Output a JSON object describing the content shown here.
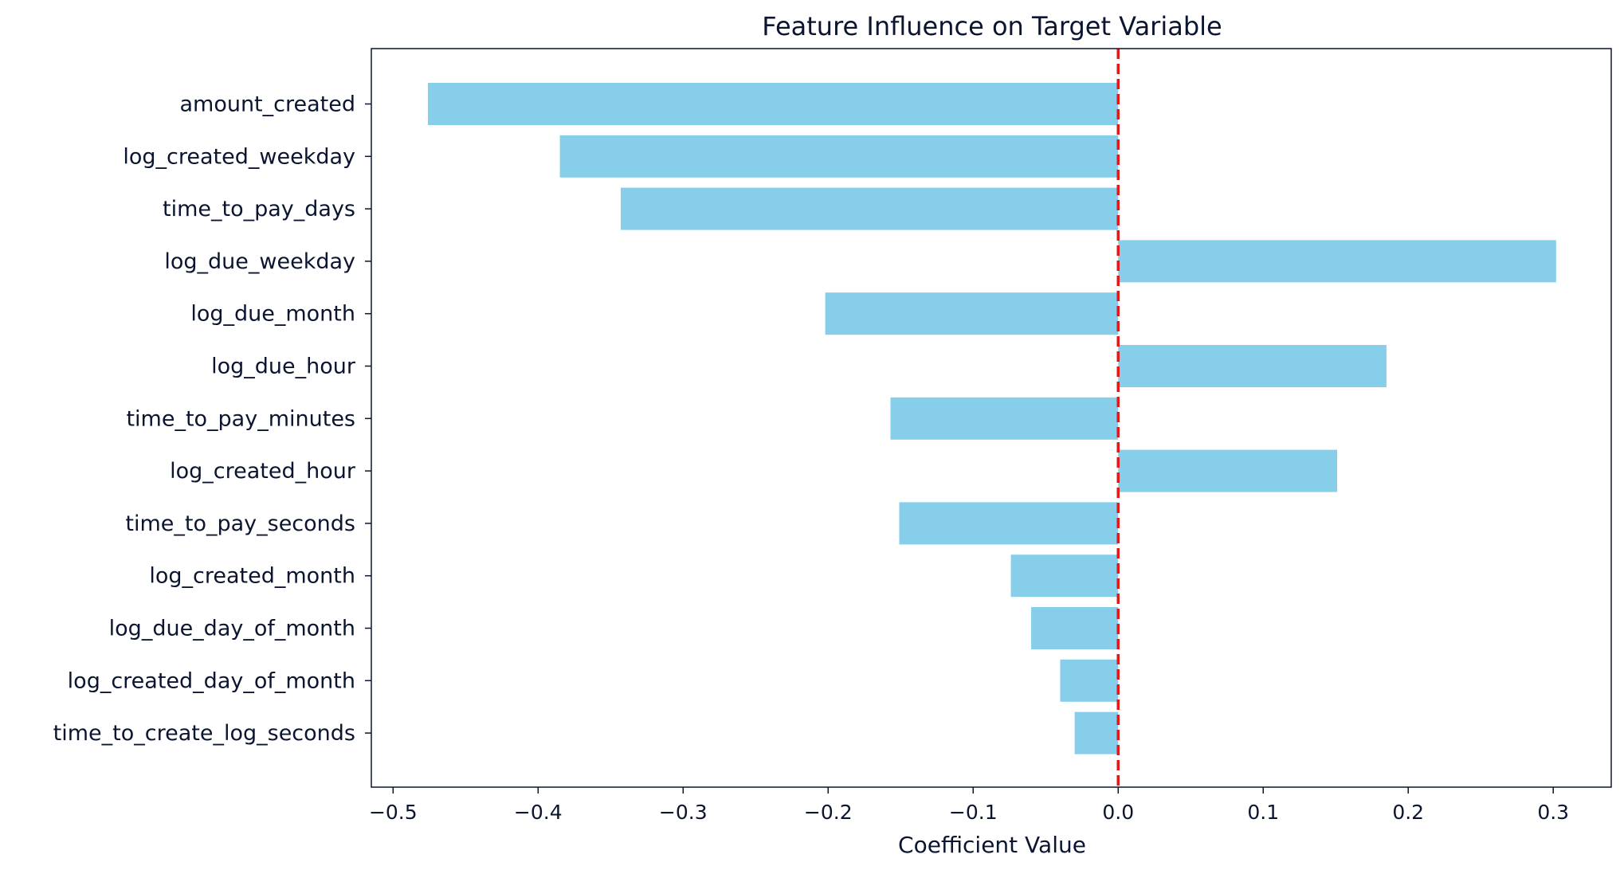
{
  "chart_data": {
    "type": "bar",
    "orientation": "horizontal",
    "title": "Feature Influence on Target Variable",
    "xlabel": "Coefficient Value",
    "ylabel": "",
    "xlim": [
      -0.515,
      0.34
    ],
    "x_ticks": [
      -0.5,
      -0.4,
      -0.3,
      -0.2,
      -0.1,
      0.0,
      0.1,
      0.2,
      0.3
    ],
    "x_tick_labels": [
      "−0.5",
      "−0.4",
      "−0.3",
      "−0.2",
      "−0.1",
      "0.0",
      "0.1",
      "0.2",
      "0.3"
    ],
    "categories": [
      "amount_created",
      "log_created_weekday",
      "time_to_pay_days",
      "log_due_weekday",
      "log_due_month",
      "log_due_hour",
      "time_to_pay_minutes",
      "log_created_hour",
      "time_to_pay_seconds",
      "log_created_month",
      "log_due_day_of_month",
      "log_created_day_of_month",
      "time_to_create_log_seconds"
    ],
    "values": [
      -0.476,
      -0.385,
      -0.343,
      0.302,
      -0.202,
      0.185,
      -0.157,
      0.151,
      -0.151,
      -0.074,
      -0.06,
      -0.04,
      -0.03
    ],
    "reference_line": {
      "x": 0.0,
      "style": "dashed",
      "color": "#e01a1a"
    },
    "grid": false,
    "legend": "none",
    "bar_color": "#87ceeb",
    "axis_color": "#0b1530"
  }
}
